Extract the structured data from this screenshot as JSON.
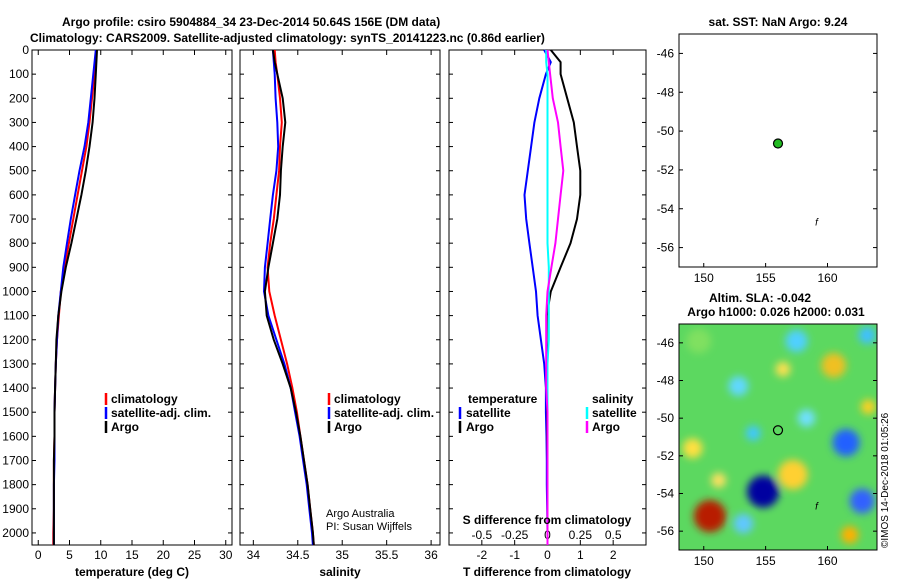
{
  "header": {
    "line1": "Argo profile: csiro 5904884_34 23-Dec-2014 50.64S 156E (DM data)",
    "line2": "Climatology: CARS2009. Satellite-adjusted climatology: synTS_20141223.nc (0.86d earlier)"
  },
  "colors": {
    "climatology": "#ff0000",
    "satellite": "#0000ff",
    "argo": "#000000",
    "sal_argo": "#ff00ff",
    "sal_sat": "#00ffff"
  },
  "legend": {
    "climatology": "climatology",
    "satellite_adj": "satellite-adj. clim.",
    "argo": "Argo",
    "temperature": "temperature",
    "salinity": "salinity",
    "satellite": "satellite"
  },
  "credit": {
    "line1": "Argo Australia",
    "line2": "PI: Susan Wijffels"
  },
  "watermark": "©IMOS 14-Dec-2018 01:05:26",
  "sst_title": "sat. SST: NaN Argo: 9.24",
  "sla_title1": "Altim. SLA: -0.042",
  "sla_title2": "Argo h1000: 0.026 h2000: 0.031",
  "argo_marker": "f",
  "chart_data": [
    {
      "type": "line",
      "name": "temperature",
      "xlabel": "temperature (deg C)",
      "ylabel": "",
      "xlim": [
        -1,
        31
      ],
      "ylim": [
        2050,
        0
      ],
      "xticks": [
        0,
        5,
        10,
        15,
        20,
        25,
        30
      ],
      "yticks": [
        0,
        100,
        200,
        300,
        400,
        500,
        600,
        700,
        800,
        900,
        1000,
        1100,
        1200,
        1300,
        1400,
        1500,
        1600,
        1700,
        1800,
        1900,
        2000
      ],
      "depth": [
        0,
        100,
        200,
        300,
        400,
        500,
        600,
        700,
        800,
        900,
        1000,
        1100,
        1200,
        1300,
        1400,
        1500,
        1600,
        1700,
        1800,
        1900,
        2000,
        2050
      ],
      "series": [
        {
          "name": "climatology",
          "values": [
            9.3,
            9.0,
            8.6,
            8.2,
            7.7,
            7.0,
            6.3,
            5.6,
            4.9,
            4.2,
            3.6,
            3.3,
            3.0,
            2.8,
            2.7,
            2.6,
            2.6,
            2.5,
            2.5,
            2.5,
            2.4,
            2.4
          ]
        },
        {
          "name": "satellite",
          "values": [
            9.2,
            8.8,
            8.4,
            8.0,
            7.4,
            6.6,
            5.9,
            5.2,
            4.6,
            4.0,
            3.6,
            3.2,
            3.0,
            2.8,
            2.7,
            2.6,
            2.6,
            2.6,
            2.5,
            2.5,
            2.5,
            2.5
          ]
        },
        {
          "name": "Argo",
          "values": [
            9.4,
            9.2,
            9.0,
            8.7,
            8.2,
            7.6,
            6.9,
            6.1,
            5.3,
            4.4,
            3.7,
            3.2,
            2.9,
            2.8,
            2.7,
            2.6,
            2.6,
            2.5,
            2.5,
            2.5,
            2.5,
            2.5
          ]
        }
      ]
    },
    {
      "type": "line",
      "name": "salinity",
      "xlabel": "salinity",
      "xlim": [
        33.85,
        36.1
      ],
      "ylim": [
        2050,
        0
      ],
      "xticks": [
        34,
        34.5,
        35,
        35.5,
        36
      ],
      "xtick_labels": [
        "34",
        "34.5",
        "35",
        "35.5",
        "36"
      ],
      "depth": [
        0,
        50,
        100,
        200,
        300,
        400,
        500,
        600,
        700,
        800,
        900,
        1000,
        1100,
        1200,
        1300,
        1400,
        1500,
        1600,
        1700,
        1800,
        1900,
        2000,
        2050
      ],
      "series": [
        {
          "name": "climatology",
          "values": [
            34.24,
            34.25,
            34.27,
            34.3,
            34.32,
            34.3,
            34.29,
            34.26,
            34.23,
            34.19,
            34.16,
            34.18,
            34.24,
            34.31,
            34.38,
            34.44,
            34.49,
            34.53,
            34.57,
            34.61,
            34.64,
            34.67,
            34.68
          ]
        },
        {
          "name": "satellite",
          "values": [
            34.22,
            34.23,
            34.24,
            34.25,
            34.27,
            34.28,
            34.26,
            34.22,
            34.19,
            34.16,
            34.13,
            34.12,
            34.17,
            34.26,
            34.35,
            34.42,
            34.47,
            34.52,
            34.56,
            34.6,
            34.63,
            34.66,
            34.67
          ]
        },
        {
          "name": "Argo",
          "values": [
            34.22,
            34.24,
            34.27,
            34.33,
            34.36,
            34.33,
            34.31,
            34.3,
            34.27,
            34.22,
            34.17,
            34.13,
            34.15,
            34.23,
            34.33,
            34.42,
            34.48,
            34.53,
            34.57,
            34.61,
            34.64,
            34.67,
            34.68
          ]
        }
      ]
    },
    {
      "type": "line",
      "name": "difference",
      "xlabel": "T difference from climatology",
      "xlabel2": "S difference from climatology",
      "xlim": [
        -3,
        3
      ],
      "ylim": [
        2050,
        0
      ],
      "xticks": [
        -2,
        -1,
        0,
        1,
        2
      ],
      "xtick_labels": [
        "-2",
        "-1",
        "0",
        "1",
        "2"
      ],
      "x2ticks": [
        -0.5,
        -0.25,
        0,
        0.25,
        0.5
      ],
      "x2tick_labels": [
        "-0.5",
        "-0.25",
        "0",
        "0.25",
        "0.5"
      ],
      "x2_scale": 0.25,
      "depth": [
        0,
        50,
        100,
        200,
        300,
        400,
        500,
        600,
        700,
        800,
        900,
        1000,
        1100,
        1200,
        1300,
        1400,
        1500,
        1600,
        1700,
        1800,
        1900,
        2000,
        2050
      ],
      "series": [
        {
          "name": "temperature satellite",
          "values": [
            -0.1,
            0.1,
            -0.05,
            -0.25,
            -0.4,
            -0.5,
            -0.6,
            -0.7,
            -0.65,
            -0.55,
            -0.45,
            -0.35,
            -0.3,
            -0.2,
            -0.1,
            -0.05,
            -0.05,
            -0.03,
            -0.02,
            -0.02,
            -0.01,
            0.0,
            0.0
          ]
        },
        {
          "name": "temperature Argo",
          "values": [
            0.1,
            0.4,
            0.4,
            0.6,
            0.8,
            0.9,
            1.0,
            1.0,
            0.9,
            0.7,
            0.4,
            0.1,
            -0.02,
            -0.03,
            -0.02,
            -0.02,
            -0.01,
            -0.01,
            0.0,
            0.0,
            0.0,
            0.0,
            0.0
          ]
        },
        {
          "name": "salinity satellite",
          "values": [
            -0.01,
            -0.01,
            0.0,
            0.0,
            0.0,
            0.0,
            0.0,
            0.0,
            0.0,
            0.0,
            0.01,
            0.01,
            0.01,
            0.01,
            0.0,
            0.0,
            0.0,
            0.0,
            0.0,
            0.0,
            0.0,
            0.0,
            0.0
          ]
        },
        {
          "name": "salinity Argo",
          "values": [
            0.0,
            0.01,
            0.02,
            0.04,
            0.08,
            0.1,
            0.12,
            0.1,
            0.08,
            0.06,
            0.03,
            0.0,
            -0.01,
            -0.01,
            -0.01,
            -0.01,
            0.0,
            0.0,
            0.0,
            0.0,
            0.0,
            0.0,
            0.0
          ]
        }
      ]
    },
    {
      "type": "scatter",
      "name": "sst_map",
      "xlim": [
        148,
        164
      ],
      "ylim": [
        -57,
        -45
      ],
      "xticks": [
        150,
        155,
        160
      ],
      "yticks": [
        -46,
        -48,
        -50,
        -52,
        -54,
        -56
      ],
      "points": [
        {
          "x": 156,
          "y": -50.64,
          "label": "Argo position"
        }
      ],
      "marker_label": {
        "x": 159,
        "y": -54.7
      }
    },
    {
      "type": "heatmap",
      "name": "sla_map",
      "xlim": [
        148,
        164
      ],
      "ylim": [
        -57,
        -45
      ],
      "xticks": [
        150,
        155,
        160
      ],
      "yticks": [
        -46,
        -48,
        -50,
        -52,
        -54,
        -56
      ],
      "points": [
        {
          "x": 156,
          "y": -50.64,
          "label": "Argo position"
        }
      ],
      "marker_label": {
        "x": 159,
        "y": -54.7
      },
      "blobs": [
        {
          "x": 154.8,
          "y": -53.9,
          "r": 1.3,
          "color": "#0000a0"
        },
        {
          "x": 150.5,
          "y": -55.2,
          "r": 1.3,
          "color": "#b81c00"
        },
        {
          "x": 161.5,
          "y": -51.3,
          "r": 1.1,
          "color": "#2060ff"
        },
        {
          "x": 162.8,
          "y": -54.4,
          "r": 1.0,
          "color": "#3060ff"
        },
        {
          "x": 149.6,
          "y": -45.9,
          "r": 1.0,
          "color": "#80e060"
        },
        {
          "x": 157.2,
          "y": -53.0,
          "r": 1.2,
          "color": "#ffd030"
        },
        {
          "x": 160.5,
          "y": -47.2,
          "r": 1.0,
          "color": "#f0c020"
        },
        {
          "x": 157.5,
          "y": -45.9,
          "r": 0.9,
          "color": "#50d0ff"
        },
        {
          "x": 152.8,
          "y": -48.3,
          "r": 0.8,
          "color": "#60d8ff"
        },
        {
          "x": 149.1,
          "y": -51.6,
          "r": 0.8,
          "color": "#ffe040"
        },
        {
          "x": 158.3,
          "y": -50.0,
          "r": 0.7,
          "color": "#70e0ff"
        },
        {
          "x": 153.2,
          "y": -55.6,
          "r": 0.8,
          "color": "#60c8ff"
        },
        {
          "x": 161.8,
          "y": -56.2,
          "r": 0.7,
          "color": "#ffb000"
        },
        {
          "x": 154.0,
          "y": -50.8,
          "r": 0.6,
          "color": "#40c8ff"
        },
        {
          "x": 163.2,
          "y": -45.6,
          "r": 0.7,
          "color": "#40c0ff"
        },
        {
          "x": 151.2,
          "y": -53.3,
          "r": 0.6,
          "color": "#ffe060"
        },
        {
          "x": 156.4,
          "y": -47.4,
          "r": 0.6,
          "color": "#ffe050"
        },
        {
          "x": 163.3,
          "y": -49.4,
          "r": 0.6,
          "color": "#ffd020"
        }
      ]
    }
  ]
}
